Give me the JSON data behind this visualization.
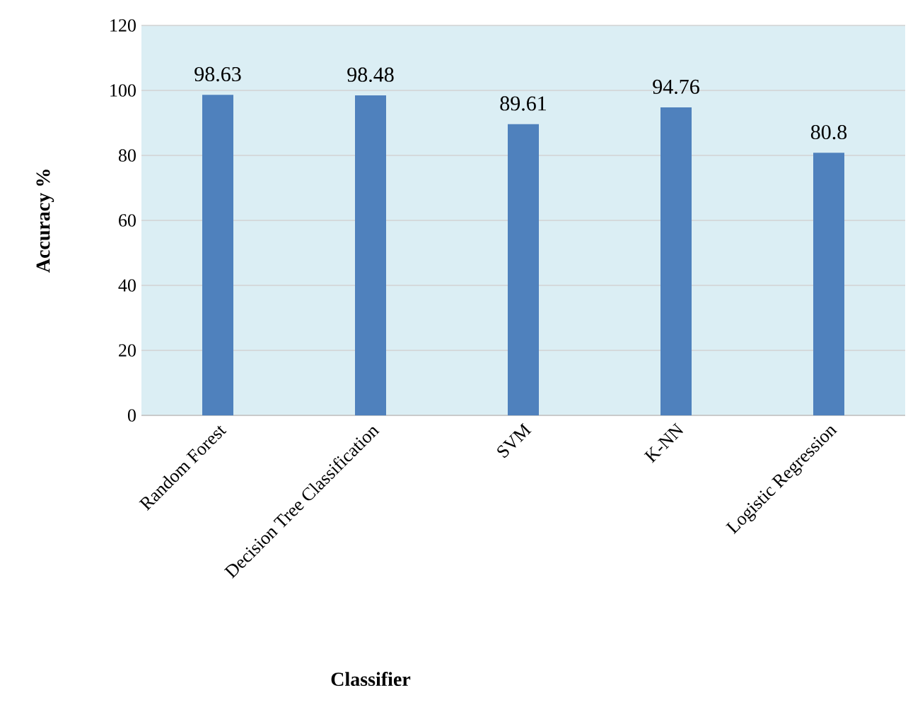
{
  "chart_data": {
    "type": "bar",
    "xlabel": "Classifier",
    "ylabel": "Accuracy %",
    "categories": [
      "Random Forest",
      "Decision Tree Classification",
      "SVM",
      "K-NN",
      "Logistic Regression"
    ],
    "values": [
      98.63,
      98.48,
      89.61,
      94.76,
      80.8
    ],
    "color": "#4f81bd",
    "ylim": [
      0,
      120
    ],
    "yticks": [
      0,
      20,
      40,
      60,
      80,
      100,
      120
    ],
    "grid": "y",
    "data_labels": true
  }
}
